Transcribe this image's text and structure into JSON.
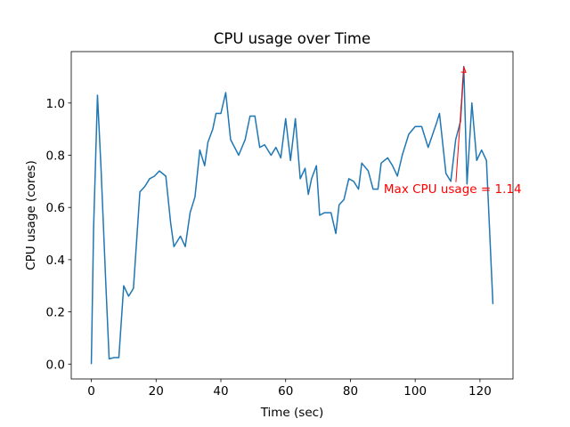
{
  "chart_data": {
    "type": "line",
    "title": "CPU usage over Time",
    "xlabel": "Time (sec)",
    "ylabel": "CPU usage (cores)",
    "xlim": [
      -6.2,
      130.2
    ],
    "ylim": [
      -0.057,
      1.197
    ],
    "xticks": [
      0,
      20,
      40,
      60,
      80,
      100,
      120
    ],
    "yticks": [
      {
        "value": 0,
        "label": "0.0"
      },
      {
        "value": 0.2,
        "label": "0.2"
      },
      {
        "value": 0.4,
        "label": "0.4"
      },
      {
        "value": 0.6,
        "label": "0.6"
      },
      {
        "value": 0.8,
        "label": "0.8"
      },
      {
        "value": 1,
        "label": "1.0"
      }
    ],
    "series": [
      {
        "name": "CPU usage",
        "color": "#1f77b4",
        "x": [
          0,
          0.7,
          1.9,
          3,
          4.5,
          5.5,
          7,
          8.5,
          10,
          11.5,
          13,
          15,
          16.5,
          18,
          19.5,
          21,
          23,
          24.5,
          25.5,
          27.5,
          29,
          30.5,
          32,
          33.5,
          35,
          36,
          37.5,
          38.5,
          40,
          41.5,
          43,
          45.5,
          47.5,
          49,
          50.5,
          52,
          53.5,
          55.5,
          57,
          58.5,
          60,
          61.5,
          63,
          64.5,
          66,
          67,
          68,
          69.5,
          70.5,
          72,
          74,
          75.5,
          76.5,
          78,
          79.5,
          81,
          82.5,
          83.5,
          85.5,
          87,
          88.5,
          89.5,
          91.5,
          93,
          94.5,
          96,
          98,
          100,
          102,
          104,
          106.5,
          107.5,
          109.5,
          111,
          112.5,
          114,
          115,
          116,
          117.5,
          119,
          120.5,
          122,
          124
        ],
        "values": [
          0,
          0.52,
          1.03,
          0.75,
          0.3,
          0.02,
          0.025,
          0.025,
          0.3,
          0.26,
          0.29,
          0.66,
          0.68,
          0.71,
          0.72,
          0.74,
          0.72,
          0.54,
          0.45,
          0.49,
          0.45,
          0.58,
          0.64,
          0.82,
          0.76,
          0.85,
          0.9,
          0.96,
          0.96,
          1.04,
          0.86,
          0.8,
          0.86,
          0.95,
          0.95,
          0.83,
          0.84,
          0.8,
          0.83,
          0.79,
          0.94,
          0.78,
          0.94,
          0.71,
          0.75,
          0.65,
          0.71,
          0.76,
          0.57,
          0.58,
          0.58,
          0.5,
          0.61,
          0.63,
          0.71,
          0.7,
          0.67,
          0.77,
          0.74,
          0.67,
          0.67,
          0.77,
          0.79,
          0.76,
          0.72,
          0.8,
          0.88,
          0.91,
          0.91,
          0.83,
          0.92,
          0.96,
          0.73,
          0.7,
          0.86,
          0.93,
          1.14,
          0.69,
          1.0,
          0.78,
          0.82,
          0.78,
          0.23
        ]
      }
    ],
    "annotations": [
      {
        "text": "Max CPU usage = 1.14",
        "x": 90.3,
        "y": 0.656,
        "xy": [
          115,
          1.14
        ],
        "color": "red"
      }
    ]
  }
}
